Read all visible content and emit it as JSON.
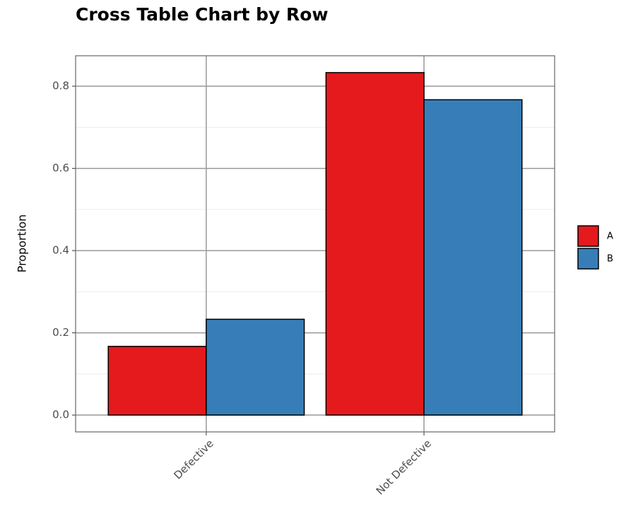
{
  "chart_data": {
    "type": "bar",
    "title": "Cross Table Chart by Row",
    "y_label": "Proportion",
    "categories": [
      "Defective",
      "Not Defective"
    ],
    "series": [
      {
        "name": "A",
        "color": "#e41a1c",
        "values": [
          0.167,
          0.833
        ]
      },
      {
        "name": "B",
        "color": "#377eb8",
        "values": [
          0.233,
          0.767
        ]
      }
    ],
    "ylim": [
      -0.041,
      0.874
    ],
    "yticks": [
      0.0,
      0.2,
      0.4,
      0.6,
      0.8
    ],
    "grid": true,
    "legend": "right"
  }
}
